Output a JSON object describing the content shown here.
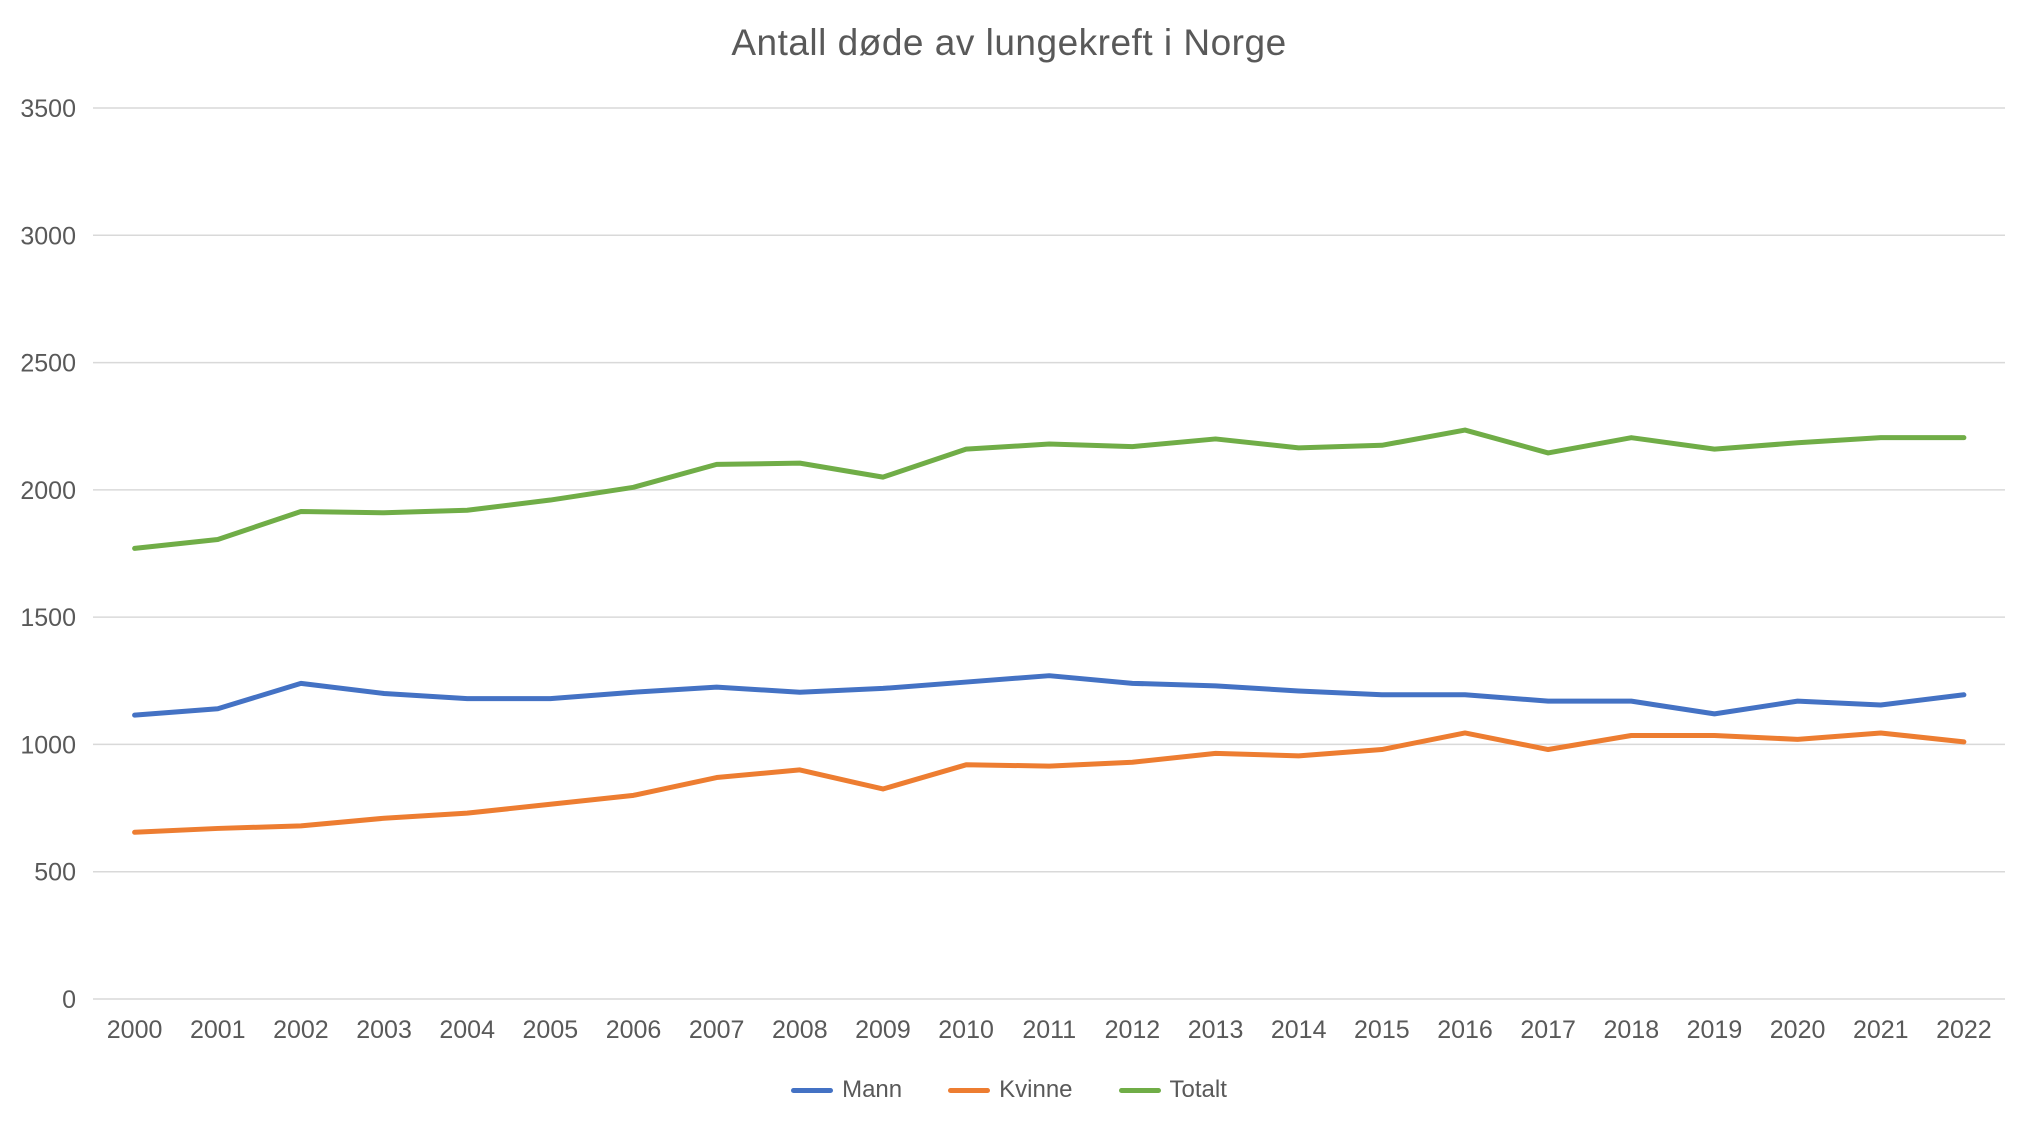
{
  "title": "Antall døde av lungekreft i Norge",
  "chart_data": {
    "type": "line",
    "title": "Antall døde av lungekreft i Norge",
    "x": [
      2000,
      2001,
      2002,
      2003,
      2004,
      2005,
      2006,
      2007,
      2008,
      2009,
      2010,
      2011,
      2012,
      2013,
      2014,
      2015,
      2016,
      2017,
      2018,
      2019,
      2020,
      2021,
      2022
    ],
    "series": [
      {
        "name": "Mann",
        "color": "#4472C4",
        "values": [
          1115,
          1140,
          1240,
          1200,
          1180,
          1180,
          1205,
          1225,
          1205,
          1220,
          1245,
          1270,
          1240,
          1230,
          1210,
          1195,
          1195,
          1170,
          1170,
          1120,
          1170,
          1155,
          1195
        ]
      },
      {
        "name": "Kvinne",
        "color": "#ED7D31",
        "values": [
          655,
          670,
          680,
          710,
          730,
          765,
          800,
          870,
          900,
          825,
          920,
          915,
          930,
          965,
          955,
          980,
          1045,
          980,
          1035,
          1035,
          1020,
          1045,
          1010
        ]
      },
      {
        "name": "Totalt",
        "color": "#70AD47",
        "values": [
          1770,
          1805,
          1915,
          1910,
          1920,
          1960,
          2010,
          2100,
          2105,
          2050,
          2160,
          2180,
          2170,
          2200,
          2165,
          2175,
          2235,
          2145,
          2205,
          2160,
          2185,
          2205,
          2205
        ]
      }
    ],
    "xlabel": "",
    "ylabel": "",
    "ylim": [
      0,
      3500
    ],
    "yticks": [
      0,
      500,
      1000,
      1500,
      2000,
      2500,
      3000,
      3500
    ],
    "grid": "horizontal",
    "legend_position": "bottom"
  },
  "style": {
    "axis_text_color": "#595959",
    "title_color": "#595959",
    "gridline_color": "#D9D9D9",
    "background_color": "#FFFFFF"
  }
}
